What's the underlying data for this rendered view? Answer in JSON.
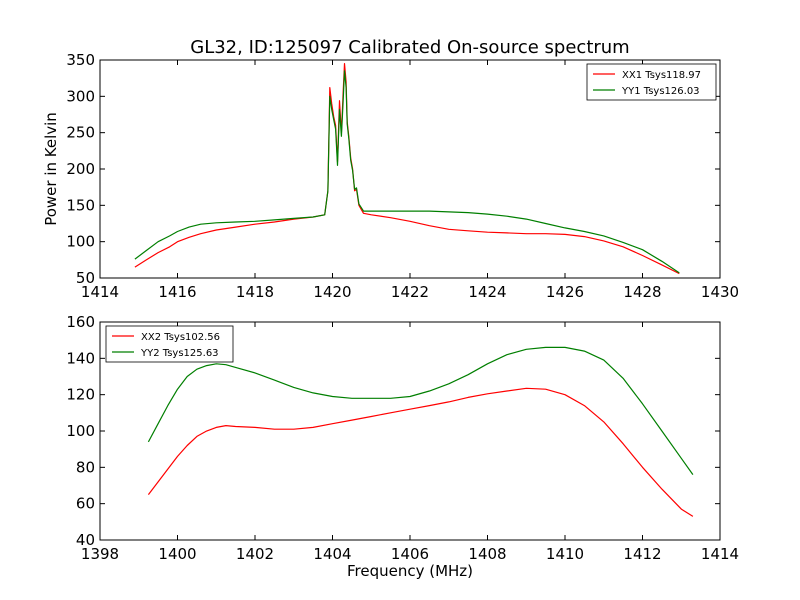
{
  "figure": {
    "title": "GL32, ID:125097 Calibrated On-source spectrum",
    "xlabel": "Frequency (MHz)",
    "ylabel": "Power in Kelvin"
  },
  "colors": {
    "red": "#ff0000",
    "green": "#007f00"
  },
  "chart_data": [
    {
      "type": "line",
      "xlim": [
        1414,
        1430
      ],
      "ylim": [
        50,
        350
      ],
      "xticks": [
        1414,
        1416,
        1418,
        1420,
        1422,
        1424,
        1426,
        1428,
        1430
      ],
      "yticks": [
        50,
        100,
        150,
        200,
        250,
        300,
        350
      ],
      "xticklabels": [
        "1414",
        "1416",
        "1418",
        "1420",
        "1422",
        "1424",
        "1426",
        "1428",
        "1430"
      ],
      "yticklabels": [
        "50",
        "100",
        "150",
        "200",
        "250",
        "300",
        "350"
      ],
      "grid": false,
      "legend_position": "top-right",
      "series": [
        {
          "name": "XX1 Tsys118.97",
          "color": "#ff0000",
          "x": [
            1414.9,
            1415.2,
            1415.5,
            1415.8,
            1416.0,
            1416.3,
            1416.6,
            1417.0,
            1417.5,
            1418.0,
            1418.5,
            1419.0,
            1419.5,
            1419.8,
            1419.88,
            1419.93,
            1419.98,
            1420.03,
            1420.08,
            1420.13,
            1420.18,
            1420.23,
            1420.28,
            1420.31,
            1420.35,
            1420.38,
            1420.42,
            1420.47,
            1420.52,
            1420.57,
            1420.62,
            1420.68,
            1420.8,
            1421.0,
            1421.5,
            1422.0,
            1422.5,
            1423.0,
            1423.5,
            1424.0,
            1424.5,
            1425.0,
            1425.5,
            1426.0,
            1426.5,
            1427.0,
            1427.5,
            1428.0,
            1428.5,
            1428.95
          ],
          "y": [
            65,
            75,
            85,
            93,
            100,
            106,
            111,
            116,
            120,
            124,
            127,
            131,
            134,
            137,
            170,
            312,
            290,
            272,
            260,
            210,
            294,
            250,
            310,
            345,
            320,
            265,
            245,
            215,
            200,
            170,
            172,
            150,
            139,
            137,
            133,
            128,
            122,
            117,
            115,
            113,
            112,
            111,
            111,
            110,
            107,
            101,
            93,
            81,
            68,
            56
          ]
        },
        {
          "name": "YY1 Tsys126.03",
          "color": "#007f00",
          "x": [
            1414.9,
            1415.2,
            1415.5,
            1415.8,
            1416.0,
            1416.3,
            1416.6,
            1417.0,
            1417.5,
            1418.0,
            1418.5,
            1419.0,
            1419.5,
            1419.8,
            1419.88,
            1419.93,
            1419.98,
            1420.03,
            1420.08,
            1420.13,
            1420.18,
            1420.23,
            1420.28,
            1420.31,
            1420.35,
            1420.38,
            1420.42,
            1420.47,
            1420.52,
            1420.57,
            1420.62,
            1420.68,
            1420.8,
            1421.0,
            1421.5,
            1422.0,
            1422.5,
            1423.0,
            1423.5,
            1424.0,
            1424.5,
            1425.0,
            1425.5,
            1426.0,
            1426.5,
            1427.0,
            1427.5,
            1428.0,
            1428.5,
            1428.95
          ],
          "y": [
            76,
            88,
            100,
            108,
            114,
            120,
            124,
            126,
            127,
            128,
            130,
            132,
            134,
            137,
            170,
            300,
            282,
            268,
            255,
            205,
            282,
            245,
            298,
            335,
            312,
            262,
            242,
            212,
            198,
            172,
            174,
            152,
            142,
            142,
            142,
            142,
            142,
            141,
            140,
            138,
            135,
            131,
            125,
            119,
            114,
            108,
            99,
            89,
            73,
            57
          ]
        }
      ]
    },
    {
      "type": "line",
      "xlim": [
        1398,
        1414
      ],
      "ylim": [
        40,
        160
      ],
      "xticks": [
        1398,
        1400,
        1402,
        1404,
        1406,
        1408,
        1410,
        1412,
        1414
      ],
      "yticks": [
        40,
        60,
        80,
        100,
        120,
        140,
        160
      ],
      "xticklabels": [
        "1398",
        "1400",
        "1402",
        "1404",
        "1406",
        "1408",
        "1410",
        "1412",
        "1414"
      ],
      "yticklabels": [
        "40",
        "60",
        "80",
        "100",
        "120",
        "140",
        "160"
      ],
      "xlabel": "Frequency (MHz)",
      "grid": false,
      "legend_position": "top-left",
      "series": [
        {
          "name": "XX2 Tsys102.56",
          "color": "#ff0000",
          "x": [
            1399.25,
            1399.5,
            1399.75,
            1400.0,
            1400.25,
            1400.5,
            1400.75,
            1401.0,
            1401.25,
            1401.5,
            1402.0,
            1402.5,
            1403.0,
            1403.5,
            1404.0,
            1404.5,
            1405.0,
            1405.5,
            1406.0,
            1406.5,
            1407.0,
            1407.5,
            1408.0,
            1408.5,
            1409.0,
            1409.5,
            1410.0,
            1410.5,
            1411.0,
            1411.5,
            1412.0,
            1412.5,
            1413.0,
            1413.3
          ],
          "y": [
            65,
            72,
            79,
            86,
            92,
            97,
            100,
            102,
            103,
            102.5,
            102,
            101,
            101,
            102,
            104,
            106,
            108,
            110,
            112,
            114,
            116,
            118.5,
            120.5,
            122,
            123.5,
            123,
            120,
            114,
            105,
            93,
            80,
            68,
            57,
            53
          ]
        },
        {
          "name": "YY2 Tsys125.63",
          "color": "#007f00",
          "x": [
            1399.25,
            1399.5,
            1399.75,
            1400.0,
            1400.25,
            1400.5,
            1400.75,
            1401.0,
            1401.25,
            1401.5,
            1402.0,
            1402.5,
            1403.0,
            1403.5,
            1404.0,
            1404.5,
            1405.0,
            1405.5,
            1406.0,
            1406.5,
            1407.0,
            1407.5,
            1408.0,
            1408.5,
            1409.0,
            1409.5,
            1410.0,
            1410.5,
            1411.0,
            1411.5,
            1412.0,
            1412.5,
            1413.0,
            1413.3
          ],
          "y": [
            94,
            104,
            114,
            123,
            130,
            134,
            136,
            137,
            136.5,
            135,
            132,
            128,
            124,
            121,
            119,
            118,
            118,
            118,
            119,
            122,
            126,
            131,
            137,
            142,
            145,
            146,
            146,
            144,
            139,
            129,
            115,
            100,
            85,
            76
          ]
        }
      ]
    }
  ]
}
